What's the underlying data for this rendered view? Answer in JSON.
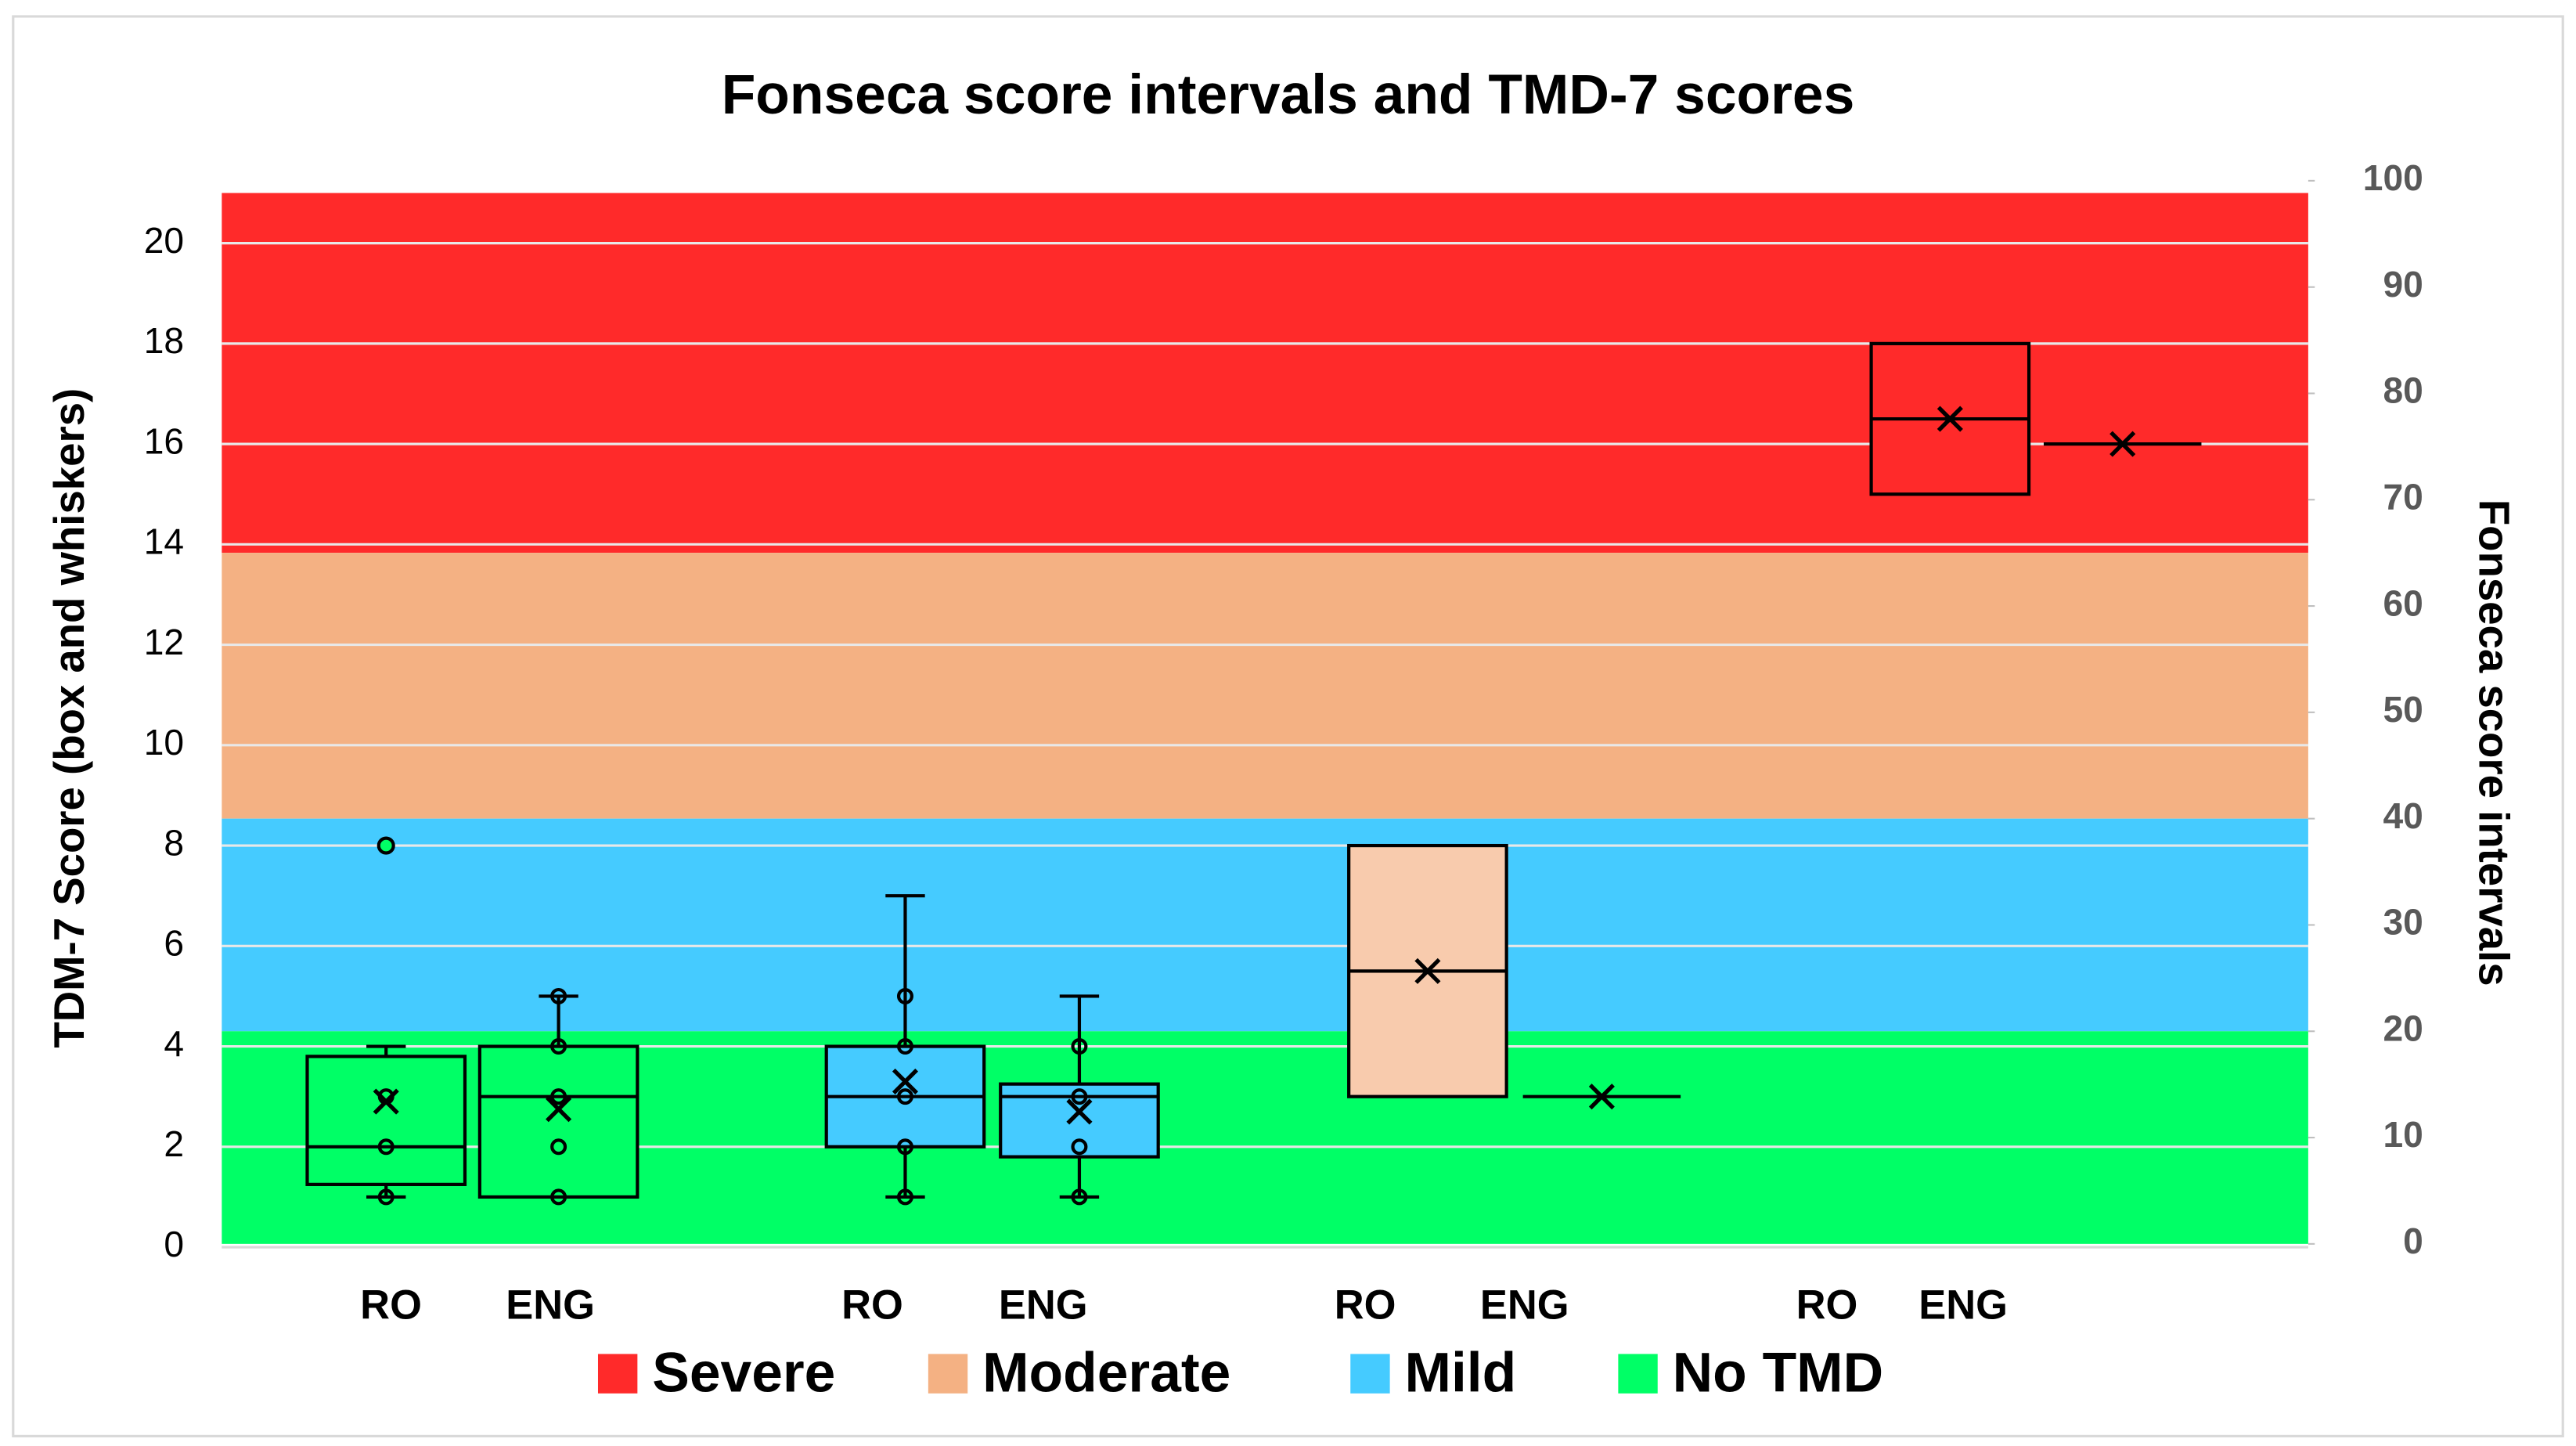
{
  "chart_data": {
    "type": "box",
    "title": "Fonseca score intervals and TMD-7 scores",
    "y_label": "TDM-7 Score (box and whiskers)",
    "y2_label": "Fonseca score intervals",
    "ylim": [
      0,
      21
    ],
    "yticks": [
      0,
      2,
      4,
      6,
      8,
      10,
      12,
      14,
      16,
      18,
      20
    ],
    "y2lim": [
      0,
      100
    ],
    "y2ticks": [
      0,
      10,
      20,
      30,
      40,
      50,
      60,
      70,
      80,
      90,
      100
    ],
    "grid": true,
    "bands": [
      {
        "name": "Severe",
        "color": "#ff2a2a",
        "range": [
          65,
          100
        ]
      },
      {
        "name": "Moderate",
        "color": "#f4b183",
        "range": [
          40,
          65
        ]
      },
      {
        "name": "Mild",
        "color": "#45cbff",
        "range": [
          20,
          40
        ]
      },
      {
        "name": "No TMD",
        "color": "#00ff66",
        "range": [
          0,
          20
        ]
      }
    ],
    "categories": [
      "RO",
      "ENG",
      "RO",
      "ENG",
      "RO",
      "ENG",
      "RO",
      "ENG"
    ],
    "boxes": [
      {
        "min": 1,
        "q1": 1.25,
        "median": 2,
        "q3": 3.8,
        "max": 4,
        "mean": 2.9,
        "points": [
          1,
          2,
          3
        ],
        "outliers": [
          8
        ],
        "color": "#00ff66"
      },
      {
        "min": 1,
        "q1": 1,
        "median": 3,
        "q3": 4,
        "max": 5,
        "mean": 2.75,
        "points": [
          1,
          2,
          3,
          4,
          5
        ],
        "outliers": [],
        "color": "#00ff66"
      },
      {
        "min": 1,
        "q1": 2,
        "median": 3,
        "q3": 4,
        "max": 7,
        "mean": 3.3,
        "points": [
          1,
          2,
          3,
          4,
          5
        ],
        "outliers": [],
        "color": "#45cbff"
      },
      {
        "min": 1,
        "q1": 1.8,
        "median": 3,
        "q3": 3.25,
        "max": 5,
        "mean": 2.7,
        "points": [
          1,
          2,
          3,
          4
        ],
        "outliers": [],
        "color": "#45cbff"
      },
      {
        "min": 3,
        "q1": 3,
        "median": 5.5,
        "q3": 8,
        "max": 8,
        "mean": 5.5,
        "points": [],
        "outliers": [],
        "color": "#f8cbad"
      },
      {
        "min": 3,
        "q1": 3,
        "median": 3,
        "q3": 3,
        "max": 3,
        "mean": 3,
        "points": [],
        "outliers": [],
        "color": "#f8cbad"
      },
      {
        "min": 15,
        "q1": 15,
        "median": 16.5,
        "q3": 18,
        "max": 18,
        "mean": 16.5,
        "points": [],
        "outliers": [],
        "color": "#ff2a2a"
      },
      {
        "min": 16,
        "q1": 16,
        "median": 16,
        "q3": 16,
        "max": 16,
        "mean": 16,
        "points": [],
        "outliers": [],
        "color": "#ff2a2a"
      }
    ]
  }
}
